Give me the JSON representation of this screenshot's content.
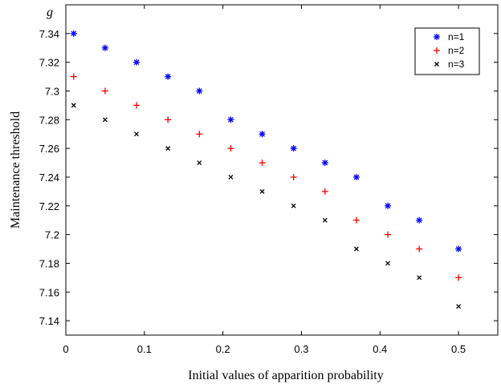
{
  "chart_data": {
    "type": "scatter",
    "title": "",
    "corner_label": "g",
    "xlabel": "Initial values of apparition probability",
    "ylabel": "Maintenance threshold",
    "xlim": [
      0,
      0.55
    ],
    "ylim": [
      7.13,
      7.36
    ],
    "xticks": [
      0,
      0.1,
      0.2,
      0.3,
      0.4,
      0.5
    ],
    "xtick_labels": [
      "0",
      "0.1",
      "0.2",
      "0.3",
      "0.4",
      "0.5"
    ],
    "yticks": [
      7.14,
      7.16,
      7.18,
      7.2,
      7.22,
      7.24,
      7.26,
      7.28,
      7.3,
      7.32,
      7.34
    ],
    "ytick_labels": [
      "7.14",
      "7.16",
      "7.18",
      "7.2",
      "7.22",
      "7.24",
      "7.26",
      "7.28",
      "7.3",
      "7.32",
      "7.34"
    ],
    "grid": false,
    "legend_position": "top-right",
    "x": [
      0.01,
      0.05,
      0.09,
      0.13,
      0.17,
      0.21,
      0.25,
      0.29,
      0.33,
      0.37,
      0.41,
      0.45,
      0.5
    ],
    "series": [
      {
        "name": "n=1",
        "marker": "asterisk",
        "color": "#0000ff",
        "values": [
          7.34,
          7.33,
          7.32,
          7.31,
          7.3,
          7.28,
          7.27,
          7.26,
          7.25,
          7.24,
          7.22,
          7.21,
          7.19
        ]
      },
      {
        "name": "n=2",
        "marker": "plus",
        "color": "#ff0000",
        "values": [
          7.31,
          7.3,
          7.29,
          7.28,
          7.27,
          7.26,
          7.25,
          7.24,
          7.23,
          7.21,
          7.2,
          7.19,
          7.17
        ]
      },
      {
        "name": "n=3",
        "marker": "cross",
        "color": "#000000",
        "values": [
          7.29,
          7.28,
          7.27,
          7.26,
          7.25,
          7.24,
          7.23,
          7.22,
          7.21,
          7.19,
          7.18,
          7.17,
          7.15
        ]
      }
    ]
  }
}
